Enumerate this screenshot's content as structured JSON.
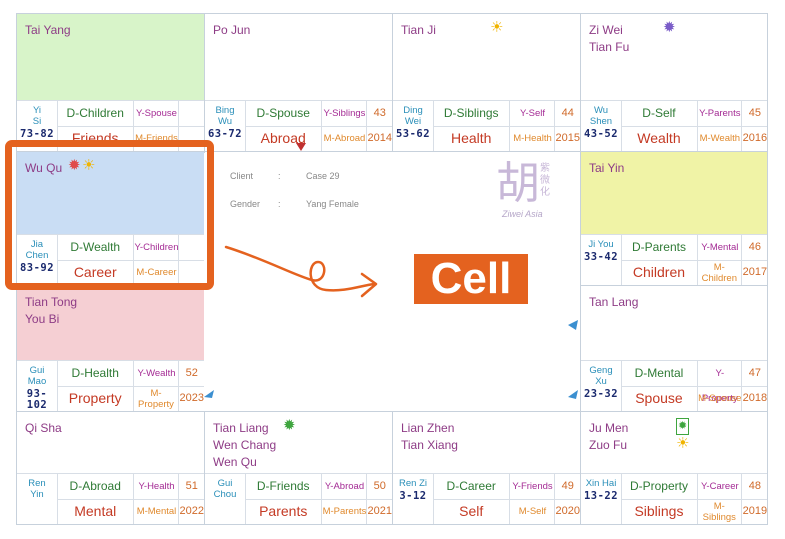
{
  "center": {
    "client_label": "Client",
    "client_colon": ":",
    "client_value": "Case 29",
    "gender_label": "Gender",
    "gender_colon": ":",
    "gender_value": "Yang Female",
    "logo_main": "胡",
    "logo_side": "紫微化",
    "logo_sub": "Ziwei Asia",
    "callout": "Cell"
  },
  "cells": [
    {
      "stars": [
        "Tai Yang"
      ],
      "bg": "#d8f4c9",
      "stem": [
        "Yi",
        "Si"
      ],
      "age": "73-82",
      "d": "D-Children",
      "y": "Y-Spouse",
      "pal": "Friends",
      "m": "M-Friends",
      "ynum": "",
      "year": "",
      "icons": []
    },
    {
      "stars": [
        "Po Jun"
      ],
      "bg": "#ffffff",
      "stem": [
        "Bing",
        "Wu"
      ],
      "age": "63-72",
      "d": "D-Spouse",
      "y": "Y-Siblings",
      "ynum": "43",
      "pal": "Abroad",
      "m": "M-Abroad",
      "year": "2014",
      "icons": []
    },
    {
      "stars": [
        "Tian Ji"
      ],
      "bg": "#ffffff",
      "stem": [
        "Ding",
        "Wei"
      ],
      "age": "53-62",
      "d": "D-Siblings",
      "y": "Y-Self",
      "ynum": "44",
      "pal": "Health",
      "m": "M-Health",
      "year": "2015",
      "icons": [
        "sun-yellow"
      ]
    },
    {
      "stars": [
        "Zi Wei",
        "Tian Fu"
      ],
      "bg": "#ffffff",
      "stem": [
        "Wu",
        "Shen"
      ],
      "age": "43-52",
      "d": "D-Self",
      "y": "Y-Parents",
      "ynum": "45",
      "pal": "Wealth",
      "m": "M-Wealth",
      "year": "2016",
      "icons": [
        "star-purple"
      ]
    },
    {
      "stars": [
        "Wu Qu"
      ],
      "bg": "#c9ddf4",
      "stem": [
        "Jia",
        "Chen"
      ],
      "age": "83-92",
      "d": "D-Wealth",
      "y": "Y-Children",
      "ynum": "",
      "pal": "Career",
      "m": "M-Career",
      "year": "",
      "icons": [
        "star-red",
        "sun-yellow"
      ]
    },
    {
      "stars": [
        "Tai Yin"
      ],
      "bg": "#f0f3a6",
      "stem": [
        "Ji You"
      ],
      "age": "33-42",
      "d": "D-Parents",
      "y": "Y-Mental",
      "ynum": "46",
      "pal": "Children",
      "m": "M-Children",
      "year": "2017",
      "icons": []
    },
    {
      "stars": [
        "Tian Tong",
        "You Bi"
      ],
      "bg": "#f5cfd3",
      "stem": [
        "Gui",
        "Mao"
      ],
      "age": "93-102",
      "d": "D-Health",
      "y": "Y-Wealth",
      "ynum": "52",
      "pal": "Property",
      "m": "M-Property",
      "year": "2023",
      "icons": []
    },
    {
      "stars": [
        "Tan Lang"
      ],
      "bg": "#ffffff",
      "stem": [
        "Geng",
        "Xu"
      ],
      "age": "23-32",
      "d": "D-Mental",
      "y": "Y-Property",
      "ynum": "47",
      "pal": "Spouse",
      "m": "M-Spouse",
      "year": "2018",
      "icons": []
    },
    {
      "stars": [
        "Qi Sha"
      ],
      "bg": "#ffffff",
      "stem": [
        "Ren",
        "Yin"
      ],
      "age": "",
      "d": "D-Abroad",
      "y": "Y-Health",
      "ynum": "51",
      "pal": "Mental",
      "m": "M-Mental",
      "year": "2022",
      "icons": []
    },
    {
      "stars": [
        "Tian Liang",
        "Wen Chang",
        "Wen Qu"
      ],
      "bg": "#ffffff",
      "stem": [
        "Gui",
        "Chou"
      ],
      "age": "",
      "d": "D-Friends",
      "y": "Y-Abroad",
      "ynum": "50",
      "pal": "Parents",
      "m": "M-Parents",
      "year": "2021",
      "icons": [
        "star-green"
      ]
    },
    {
      "stars": [
        "Lian Zhen",
        "Tian Xiang"
      ],
      "bg": "#ffffff",
      "stem": [
        "Ren Zi"
      ],
      "age": "3-12",
      "d": "D-Career",
      "y": "Y-Friends",
      "ynum": "49",
      "pal": "Self",
      "m": "M-Self",
      "year": "2020",
      "icons": []
    },
    {
      "stars": [
        "Ju Men",
        "Zuo Fu"
      ],
      "bg": "#ffffff",
      "stem": [
        "Xin Hai"
      ],
      "age": "13-22",
      "d": "D-Property",
      "y": "Y-Career",
      "ynum": "48",
      "pal": "Siblings",
      "m": "M-Siblings",
      "year": "2019",
      "icons": [
        "star-green-box",
        "sun-yellow"
      ]
    }
  ]
}
